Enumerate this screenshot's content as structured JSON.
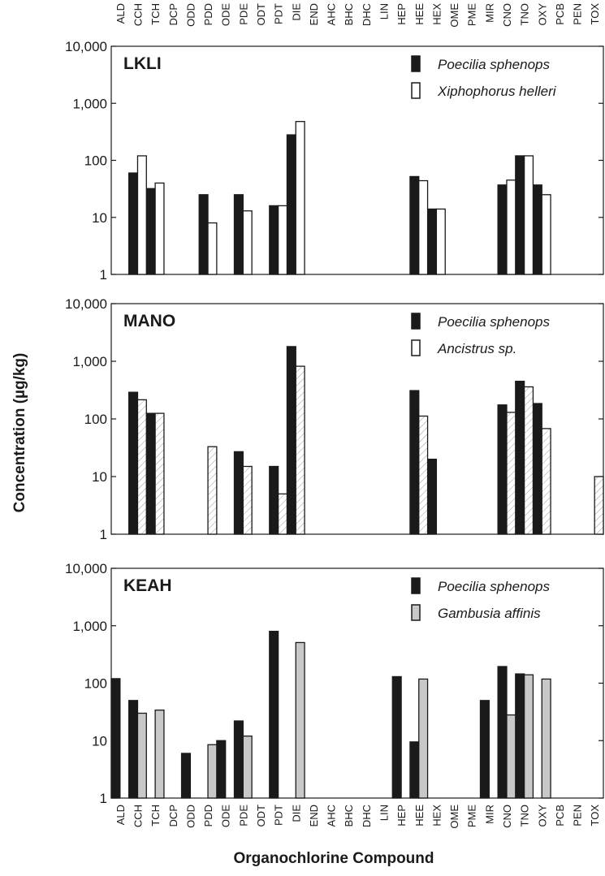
{
  "chart_data": {
    "type": "bar",
    "log_scale": true,
    "ylim": [
      1,
      10000
    ],
    "yticks": [
      1,
      10,
      100,
      1000,
      10000
    ],
    "ytick_labels": [
      "1",
      "10",
      "100",
      "1,000",
      "10,000"
    ],
    "ylabel": "Concentration (µg/kg)",
    "xlabel": "Organochlorine Compound",
    "categories": [
      "ALD",
      "CCH",
      "TCH",
      "DCP",
      "ODD",
      "PDD",
      "ODE",
      "PDE",
      "ODT",
      "PDT",
      "DIE",
      "END",
      "AHC",
      "BHC",
      "DHC",
      "LIN",
      "HEP",
      "HEE",
      "HEX",
      "OME",
      "PME",
      "MIR",
      "CNO",
      "TNO",
      "OXY",
      "PCB",
      "PEN",
      "TOX"
    ],
    "legend_placement": "top-right",
    "panels": [
      {
        "title": "LKLI",
        "series": [
          {
            "name": "Poecilia sphenops",
            "color": "#1a1a1a",
            "pattern": "solid",
            "values": [
              null,
              60,
              32,
              null,
              null,
              25,
              null,
              25,
              null,
              16,
              280,
              null,
              null,
              null,
              null,
              null,
              null,
              52,
              14,
              null,
              null,
              null,
              37,
              120,
              37,
              null,
              null,
              null
            ]
          },
          {
            "name": "Xiphophorus helleri",
            "color": "#ffffff",
            "pattern": "open",
            "values": [
              null,
              120,
              40,
              null,
              null,
              8,
              null,
              13,
              null,
              16,
              480,
              null,
              null,
              null,
              null,
              null,
              null,
              44,
              14,
              null,
              null,
              null,
              45,
              120,
              25,
              null,
              null,
              null
            ]
          }
        ]
      },
      {
        "title": "MANO",
        "series": [
          {
            "name": "Poecilia sphenops",
            "color": "#1a1a1a",
            "pattern": "solid",
            "values": [
              null,
              290,
              125,
              null,
              null,
              null,
              null,
              27,
              null,
              15,
              1800,
              null,
              null,
              null,
              null,
              null,
              null,
              310,
              20,
              null,
              null,
              null,
              175,
              450,
              185,
              null,
              null,
              null
            ]
          },
          {
            "name": "Ancistrus sp.",
            "color": "#ffffff",
            "pattern": "hatched",
            "values": [
              null,
              215,
              125,
              null,
              null,
              33,
              null,
              15,
              null,
              5,
              820,
              null,
              null,
              null,
              null,
              null,
              null,
              112,
              null,
              null,
              null,
              null,
              130,
              360,
              68,
              null,
              null,
              10
            ]
          }
        ]
      },
      {
        "title": "KEAH",
        "series": [
          {
            "name": "Poecilia sphenops",
            "color": "#1a1a1a",
            "pattern": "solid",
            "values": [
              120,
              50,
              null,
              null,
              6,
              null,
              10,
              22,
              null,
              800,
              null,
              null,
              null,
              null,
              null,
              null,
              130,
              9.5,
              null,
              null,
              null,
              50,
              195,
              145,
              null,
              null,
              null,
              null
            ]
          },
          {
            "name": "Gambusia affinis",
            "color": "#c8c8c8",
            "pattern": "solid",
            "values": [
              null,
              30,
              34,
              null,
              null,
              8.5,
              null,
              12,
              null,
              null,
              510,
              null,
              null,
              null,
              null,
              null,
              null,
              118,
              null,
              null,
              null,
              null,
              28,
              140,
              118,
              null,
              null,
              null
            ]
          }
        ]
      }
    ]
  }
}
